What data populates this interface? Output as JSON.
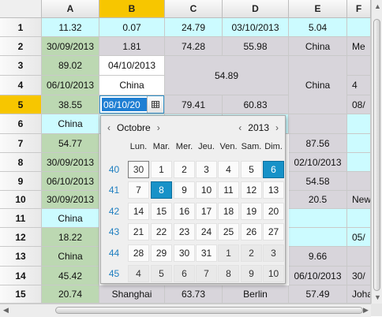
{
  "columns": [
    "A",
    "B",
    "C",
    "D",
    "E",
    "F"
  ],
  "selected_column": "B",
  "rows": [
    "1",
    "2",
    "3",
    "4",
    "5",
    "6",
    "7",
    "8",
    "9",
    "10",
    "11",
    "12",
    "13",
    "14",
    "15"
  ],
  "selected_row": "5",
  "cells": [
    {
      "r": 0,
      "c": 0,
      "t": "11.32",
      "bg": "cyan"
    },
    {
      "r": 0,
      "c": 1,
      "t": "0.07",
      "bg": "cyan"
    },
    {
      "r": 0,
      "c": 2,
      "t": "24.79",
      "bg": "cyan"
    },
    {
      "r": 0,
      "c": 3,
      "t": "03/10/2013",
      "bg": "cyan"
    },
    {
      "r": 0,
      "c": 4,
      "t": "5.04",
      "bg": "cyan"
    },
    {
      "r": 0,
      "c": 5,
      "t": "",
      "bg": "cyan"
    },
    {
      "r": 1,
      "c": 0,
      "t": "30/09/2013",
      "bg": "green"
    },
    {
      "r": 1,
      "c": 1,
      "t": "1.81",
      "bg": "gray"
    },
    {
      "r": 1,
      "c": 2,
      "t": "74.28",
      "bg": "gray"
    },
    {
      "r": 1,
      "c": 3,
      "t": "55.98",
      "bg": "gray"
    },
    {
      "r": 1,
      "c": 4,
      "t": "China",
      "bg": "gray"
    },
    {
      "r": 1,
      "c": 5,
      "t": "Me",
      "bg": "gray",
      "align": "left"
    },
    {
      "r": 2,
      "c": 0,
      "t": "89.02",
      "bg": "green"
    },
    {
      "r": 2,
      "c": 1,
      "t": "04/10/2013",
      "bg": "white"
    },
    {
      "r": 2,
      "c": 2,
      "rs": 2,
      "cs": 2,
      "t": "54.89",
      "bg": "gray"
    },
    {
      "r": 2,
      "c": 4,
      "rs": 3,
      "t": "China",
      "bg": "gray"
    },
    {
      "r": 2,
      "c": 5,
      "t": "",
      "bg": "gray"
    },
    {
      "r": 3,
      "c": 0,
      "t": "06/10/2013",
      "bg": "green"
    },
    {
      "r": 3,
      "c": 1,
      "t": "China",
      "bg": "white"
    },
    {
      "r": 3,
      "c": 5,
      "t": "4",
      "bg": "gray",
      "align": "left"
    },
    {
      "r": 4,
      "c": 0,
      "t": "38.55",
      "bg": "green"
    },
    {
      "r": 4,
      "c": 1,
      "t": "",
      "bg": "white"
    },
    {
      "r": 4,
      "c": 2,
      "t": "79.41",
      "bg": "gray"
    },
    {
      "r": 4,
      "c": 3,
      "t": "60.83",
      "bg": "gray"
    },
    {
      "r": 4,
      "c": 5,
      "t": "08/",
      "bg": "gray",
      "align": "left"
    },
    {
      "r": 5,
      "c": 0,
      "t": "China",
      "bg": "cyan"
    },
    {
      "r": 5,
      "c": 1,
      "t": "",
      "bg": "cyan"
    },
    {
      "r": 5,
      "c": 2,
      "t": "",
      "bg": "cyan"
    },
    {
      "r": 5,
      "c": 3,
      "t": "",
      "bg": "cyan"
    },
    {
      "r": 5,
      "c": 4,
      "t": "",
      "bg": "gray"
    },
    {
      "r": 5,
      "c": 5,
      "t": "",
      "bg": "cyan"
    },
    {
      "r": 6,
      "c": 0,
      "t": "54.77",
      "bg": "green"
    },
    {
      "r": 6,
      "c": 4,
      "t": "87.56",
      "bg": "gray"
    },
    {
      "r": 6,
      "c": 5,
      "t": "",
      "bg": "cyan"
    },
    {
      "r": 7,
      "c": 0,
      "t": "30/09/2013",
      "bg": "green"
    },
    {
      "r": 7,
      "c": 4,
      "t": "02/10/2013",
      "bg": "gray"
    },
    {
      "r": 7,
      "c": 5,
      "t": "",
      "bg": "cyan"
    },
    {
      "r": 8,
      "c": 0,
      "t": "06/10/2013",
      "bg": "green"
    },
    {
      "r": 8,
      "c": 4,
      "t": "54.58",
      "bg": "gray"
    },
    {
      "r": 8,
      "c": 5,
      "t": "",
      "bg": "gray"
    },
    {
      "r": 9,
      "c": 0,
      "t": "30/09/2013",
      "bg": "green"
    },
    {
      "r": 9,
      "c": 4,
      "t": "20.5",
      "bg": "gray"
    },
    {
      "r": 9,
      "c": 5,
      "t": "New",
      "bg": "gray",
      "align": "left"
    },
    {
      "r": 10,
      "c": 0,
      "t": "China",
      "bg": "cyan"
    },
    {
      "r": 10,
      "c": 4,
      "t": "",
      "bg": "cyan"
    },
    {
      "r": 10,
      "c": 5,
      "t": "",
      "bg": "cyan"
    },
    {
      "r": 11,
      "c": 0,
      "t": "18.22",
      "bg": "green"
    },
    {
      "r": 11,
      "c": 4,
      "t": "",
      "bg": "cyan"
    },
    {
      "r": 11,
      "c": 5,
      "t": "05/",
      "bg": "cyan",
      "align": "left"
    },
    {
      "r": 12,
      "c": 0,
      "t": "China",
      "bg": "green"
    },
    {
      "r": 12,
      "c": 4,
      "t": "9.66",
      "bg": "gray"
    },
    {
      "r": 12,
      "c": 5,
      "t": "",
      "bg": "gray"
    },
    {
      "r": 13,
      "c": 0,
      "t": "45.42",
      "bg": "green"
    },
    {
      "r": 13,
      "c": 4,
      "t": "06/10/2013",
      "bg": "gray"
    },
    {
      "r": 13,
      "c": 5,
      "t": "30/",
      "bg": "gray",
      "align": "left"
    },
    {
      "r": 14,
      "c": 0,
      "t": "20.74",
      "bg": "green"
    },
    {
      "r": 14,
      "c": 1,
      "t": "Shanghai",
      "bg": "gray"
    },
    {
      "r": 14,
      "c": 2,
      "t": "63.73",
      "bg": "gray"
    },
    {
      "r": 14,
      "c": 3,
      "t": "Berlin",
      "bg": "gray"
    },
    {
      "r": 14,
      "c": 4,
      "t": "57.49",
      "bg": "gray"
    },
    {
      "r": 14,
      "c": 5,
      "t": "Joha",
      "bg": "gray",
      "align": "left"
    }
  ],
  "editor": {
    "value": "08/10/20",
    "button_icon": "calendar-grid-icon"
  },
  "calendar": {
    "month": "Octobre",
    "year": "2013",
    "prev_arrow": "‹",
    "next_arrow": "›",
    "weekdays": [
      "Lun.",
      "Mar.",
      "Mer.",
      "Jeu.",
      "Ven.",
      "Sam.",
      "Dim."
    ],
    "weeks": [
      {
        "num": "40",
        "days": [
          {
            "d": "30",
            "s": "today-other"
          },
          {
            "d": "1"
          },
          {
            "d": "2"
          },
          {
            "d": "3"
          },
          {
            "d": "4"
          },
          {
            "d": "5"
          },
          {
            "d": "6",
            "s": "selected"
          }
        ]
      },
      {
        "num": "41",
        "days": [
          {
            "d": "7"
          },
          {
            "d": "8",
            "s": "selected"
          },
          {
            "d": "9"
          },
          {
            "d": "10"
          },
          {
            "d": "11"
          },
          {
            "d": "12"
          },
          {
            "d": "13"
          }
        ]
      },
      {
        "num": "42",
        "days": [
          {
            "d": "14"
          },
          {
            "d": "15"
          },
          {
            "d": "16"
          },
          {
            "d": "17"
          },
          {
            "d": "18"
          },
          {
            "d": "19"
          },
          {
            "d": "20"
          }
        ]
      },
      {
        "num": "43",
        "days": [
          {
            "d": "21"
          },
          {
            "d": "22"
          },
          {
            "d": "23"
          },
          {
            "d": "24"
          },
          {
            "d": "25"
          },
          {
            "d": "26"
          },
          {
            "d": "27"
          }
        ]
      },
      {
        "num": "44",
        "days": [
          {
            "d": "28"
          },
          {
            "d": "29"
          },
          {
            "d": "30"
          },
          {
            "d": "31"
          },
          {
            "d": "1",
            "s": "other"
          },
          {
            "d": "2",
            "s": "other"
          },
          {
            "d": "3",
            "s": "other"
          }
        ]
      },
      {
        "num": "45",
        "days": [
          {
            "d": "4",
            "s": "other"
          },
          {
            "d": "5",
            "s": "other"
          },
          {
            "d": "6",
            "s": "other"
          },
          {
            "d": "7",
            "s": "other"
          },
          {
            "d": "8",
            "s": "other"
          },
          {
            "d": "9",
            "s": "other"
          },
          {
            "d": "10",
            "s": "other"
          }
        ]
      }
    ]
  }
}
